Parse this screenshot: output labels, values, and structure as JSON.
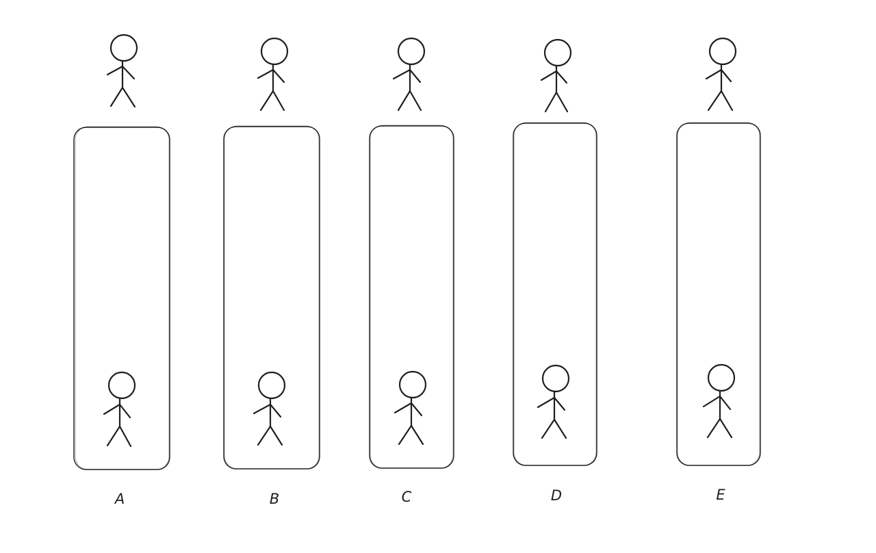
{
  "columns": [
    {
      "id": "a",
      "label": "A"
    },
    {
      "id": "b",
      "label": "B"
    },
    {
      "id": "c",
      "label": "C"
    },
    {
      "id": "d",
      "label": "D"
    },
    {
      "id": "e",
      "label": "E"
    }
  ],
  "colors": {
    "stroke": "#1e1e1e",
    "background": "#ffffff"
  }
}
